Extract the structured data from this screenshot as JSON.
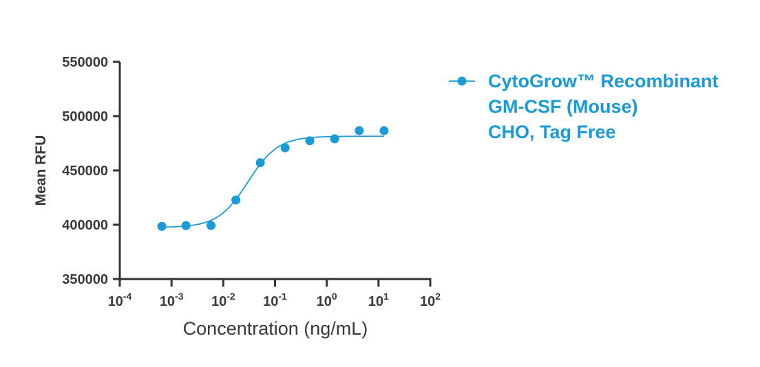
{
  "chart_data": {
    "type": "scatter",
    "title": "",
    "xlabel": "Concentration (ng/mL)",
    "ylabel": "Mean RFU",
    "x_scale": "log",
    "xlim": [
      0.0001,
      100
    ],
    "ylim": [
      350000,
      550000
    ],
    "x_ticks": [
      {
        "base": "10",
        "exp": "-4",
        "value": 0.0001
      },
      {
        "base": "10",
        "exp": "-3",
        "value": 0.001
      },
      {
        "base": "10",
        "exp": "-2",
        "value": 0.01
      },
      {
        "base": "10",
        "exp": "-1",
        "value": 0.1
      },
      {
        "base": "10",
        "exp": "0",
        "value": 1
      },
      {
        "base": "10",
        "exp": "1",
        "value": 10
      },
      {
        "base": "10",
        "exp": "2",
        "value": 100
      }
    ],
    "y_ticks": [
      {
        "label": "550000",
        "value": 550000
      },
      {
        "label": "500000",
        "value": 500000
      },
      {
        "label": "450000",
        "value": 450000
      },
      {
        "label": "400000",
        "value": 400000
      },
      {
        "label": "350000",
        "value": 350000
      }
    ],
    "grid": false,
    "legend_position": "right",
    "series": [
      {
        "name_lines": [
          "CytoGrow™ Recombinant",
          "GM-CSF (Mouse)",
          "CHO, Tag Free"
        ],
        "color": "#1a9ad6",
        "marker": "circle",
        "points": [
          {
            "x": 0.00065,
            "y": 398500
          },
          {
            "x": 0.0019,
            "y": 399200
          },
          {
            "x": 0.0058,
            "y": 399300
          },
          {
            "x": 0.0175,
            "y": 422800
          },
          {
            "x": 0.052,
            "y": 457200
          },
          {
            "x": 0.157,
            "y": 470800
          },
          {
            "x": 0.47,
            "y": 477300
          },
          {
            "x": 1.42,
            "y": 479100
          },
          {
            "x": 4.25,
            "y": 486700
          },
          {
            "x": 12.8,
            "y": 486600
          }
        ],
        "fit": {
          "model": "4PL",
          "bottom": 397500,
          "top": 481500,
          "ec50": 0.03,
          "hill": 1.5,
          "x_range": [
            0.00065,
            12.8
          ]
        }
      }
    ]
  }
}
